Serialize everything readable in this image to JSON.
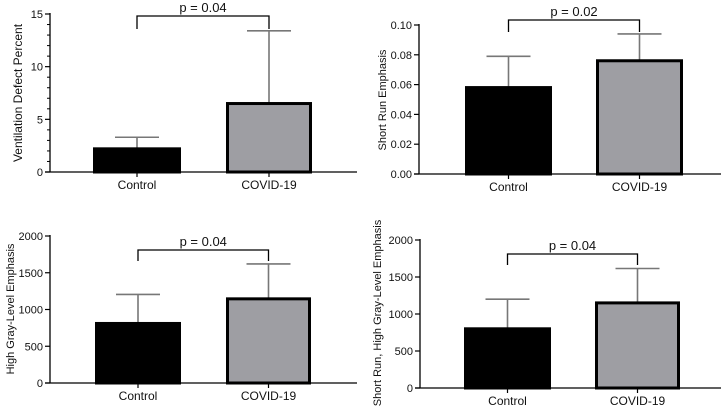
{
  "chart_data": [
    {
      "type": "bar",
      "title": "",
      "xlabel": "",
      "ylabel": "Ventilation Defect Percent",
      "categories": [
        "Control",
        "COVID-19"
      ],
      "values": [
        2.2,
        6.5
      ],
      "error_upper": [
        3.3,
        13.4
      ],
      "ylim": [
        0,
        15
      ],
      "yticks": [
        0,
        5,
        10,
        15
      ],
      "ytick_labels": [
        "0",
        "5",
        "10",
        "15"
      ],
      "minor_ticks": true,
      "annotation": "p = 0.04",
      "bar_colors": [
        "#000000",
        "#9e9ea3"
      ],
      "grid": false
    },
    {
      "type": "bar",
      "title": "",
      "xlabel": "",
      "ylabel": "Short Run Emphasis",
      "categories": [
        "Control",
        "COVID-19"
      ],
      "values": [
        0.058,
        0.076
      ],
      "error_upper": [
        0.079,
        0.094
      ],
      "ylim": [
        0,
        0.1
      ],
      "yticks": [
        0,
        0.02,
        0.04,
        0.06,
        0.08,
        0.1
      ],
      "ytick_labels": [
        "0.00",
        "0.02",
        "0.04",
        "0.06",
        "0.08",
        "0.10"
      ],
      "minor_ticks": false,
      "annotation": "p = 0.02",
      "bar_colors": [
        "#000000",
        "#9e9ea3"
      ],
      "grid": false
    },
    {
      "type": "bar",
      "title": "",
      "xlabel": "",
      "ylabel": "High Gray-Level Emphasis",
      "categories": [
        "Control",
        "COVID-19"
      ],
      "values": [
        810,
        1145
      ],
      "error_upper": [
        1205,
        1620
      ],
      "ylim": [
        0,
        2000
      ],
      "yticks": [
        0,
        500,
        1000,
        1500,
        2000
      ],
      "ytick_labels": [
        "0",
        "500",
        "1000",
        "1500",
        "2000"
      ],
      "minor_ticks": false,
      "annotation": "p = 0.04",
      "bar_colors": [
        "#000000",
        "#9e9ea3"
      ],
      "grid": false
    },
    {
      "type": "bar",
      "title": "",
      "xlabel": "",
      "ylabel": "Short Run, High Gray-Level Emphasis",
      "categories": [
        "Control",
        "COVID-19"
      ],
      "values": [
        800,
        1150
      ],
      "error_upper": [
        1200,
        1615
      ],
      "ylim": [
        0,
        2000
      ],
      "yticks": [
        0,
        500,
        1000,
        1500,
        2000
      ],
      "ytick_labels": [
        "0",
        "500",
        "1000",
        "1500",
        "2000"
      ],
      "minor_ticks": false,
      "annotation": "p = 0.04",
      "bar_colors": [
        "#000000",
        "#9e9ea3"
      ],
      "grid": false
    }
  ]
}
